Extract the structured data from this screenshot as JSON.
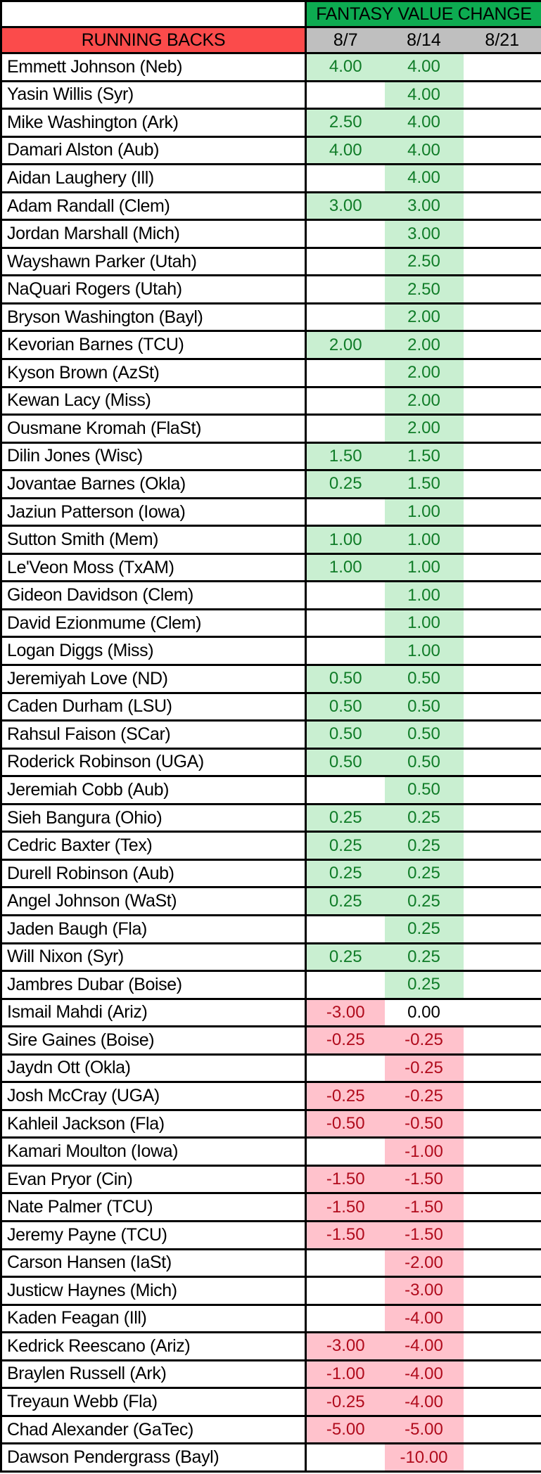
{
  "header": {
    "corner_label": "",
    "value_change_label": "FANTASY VALUE CHANGE",
    "group_label": "RUNNING BACKS",
    "date_columns": [
      "8/7",
      "8/14",
      "8/21"
    ]
  },
  "colors": {
    "header_green": "#0DAB51",
    "header_red": "#FB4B4B",
    "header_gray": "#BFBFBF",
    "positive_cell_bg": "#C9EFD1",
    "positive_text": "#107C28",
    "negative_cell_bg": "#FFC2CC",
    "negative_text": "#B00B1C",
    "zero_text": "#000000",
    "border": "#000000"
  },
  "rows": [
    {
      "player": "Emmett Johnson (Neb)",
      "values": [
        "4.00",
        "4.00",
        ""
      ]
    },
    {
      "player": "Yasin Willis (Syr)",
      "values": [
        "",
        "4.00",
        ""
      ]
    },
    {
      "player": "Mike Washington (Ark)",
      "values": [
        "2.50",
        "4.00",
        ""
      ]
    },
    {
      "player": "Damari Alston (Aub)",
      "values": [
        "4.00",
        "4.00",
        ""
      ]
    },
    {
      "player": "Aidan Laughery (Ill)",
      "values": [
        "",
        "4.00",
        ""
      ]
    },
    {
      "player": "Adam Randall (Clem)",
      "values": [
        "3.00",
        "3.00",
        ""
      ]
    },
    {
      "player": "Jordan Marshall (Mich)",
      "values": [
        "",
        "3.00",
        ""
      ]
    },
    {
      "player": "Wayshawn Parker (Utah)",
      "values": [
        "",
        "2.50",
        ""
      ]
    },
    {
      "player": "NaQuari Rogers (Utah)",
      "values": [
        "",
        "2.50",
        ""
      ]
    },
    {
      "player": "Bryson Washington (Bayl)",
      "values": [
        "",
        "2.00",
        ""
      ]
    },
    {
      "player": "Kevorian Barnes (TCU)",
      "values": [
        "2.00",
        "2.00",
        ""
      ]
    },
    {
      "player": "Kyson Brown (AzSt)",
      "values": [
        "",
        "2.00",
        ""
      ]
    },
    {
      "player": "Kewan Lacy (Miss)",
      "values": [
        "",
        "2.00",
        ""
      ]
    },
    {
      "player": "Ousmane Kromah (FlaSt)",
      "values": [
        "",
        "2.00",
        ""
      ]
    },
    {
      "player": "Dilin Jones (Wisc)",
      "values": [
        "1.50",
        "1.50",
        ""
      ]
    },
    {
      "player": "Jovantae Barnes (Okla)",
      "values": [
        "0.25",
        "1.50",
        ""
      ]
    },
    {
      "player": "Jaziun Patterson (Iowa)",
      "values": [
        "",
        "1.00",
        ""
      ]
    },
    {
      "player": "Sutton Smith (Mem)",
      "values": [
        "1.00",
        "1.00",
        ""
      ]
    },
    {
      "player": "Le'Veon Moss (TxAM)",
      "values": [
        "1.00",
        "1.00",
        ""
      ]
    },
    {
      "player": "Gideon Davidson (Clem)",
      "values": [
        "",
        "1.00",
        ""
      ]
    },
    {
      "player": "David Ezionmume (Clem)",
      "values": [
        "",
        "1.00",
        ""
      ]
    },
    {
      "player": "Logan Diggs (Miss)",
      "values": [
        "",
        "1.00",
        ""
      ]
    },
    {
      "player": "Jeremiyah Love (ND)",
      "values": [
        "0.50",
        "0.50",
        ""
      ]
    },
    {
      "player": "Caden Durham (LSU)",
      "values": [
        "0.50",
        "0.50",
        ""
      ]
    },
    {
      "player": "Rahsul Faison (SCar)",
      "values": [
        "0.50",
        "0.50",
        ""
      ]
    },
    {
      "player": "Roderick Robinson (UGA)",
      "values": [
        "0.50",
        "0.50",
        ""
      ]
    },
    {
      "player": "Jeremiah Cobb (Aub)",
      "values": [
        "",
        "0.50",
        ""
      ]
    },
    {
      "player": "Sieh Bangura (Ohio)",
      "values": [
        "0.25",
        "0.25",
        ""
      ]
    },
    {
      "player": "Cedric Baxter (Tex)",
      "values": [
        "0.25",
        "0.25",
        ""
      ]
    },
    {
      "player": "Durell Robinson (Aub)",
      "values": [
        "0.25",
        "0.25",
        ""
      ]
    },
    {
      "player": "Angel Johnson (WaSt)",
      "values": [
        "0.25",
        "0.25",
        ""
      ]
    },
    {
      "player": "Jaden Baugh (Fla)",
      "values": [
        "",
        "0.25",
        ""
      ]
    },
    {
      "player": "Will Nixon (Syr)",
      "values": [
        "0.25",
        "0.25",
        ""
      ]
    },
    {
      "player": "Jambres Dubar (Boise)",
      "values": [
        "",
        "0.25",
        ""
      ]
    },
    {
      "player": "Ismail Mahdi (Ariz)",
      "values": [
        "-3.00",
        "0.00",
        ""
      ]
    },
    {
      "player": "Sire Gaines (Boise)",
      "values": [
        "-0.25",
        "-0.25",
        ""
      ]
    },
    {
      "player": "Jaydn Ott (Okla)",
      "values": [
        "",
        "-0.25",
        ""
      ]
    },
    {
      "player": "Josh McCray (UGA)",
      "values": [
        "-0.25",
        "-0.25",
        ""
      ]
    },
    {
      "player": "Kahleil Jackson (Fla)",
      "values": [
        "-0.50",
        "-0.50",
        ""
      ]
    },
    {
      "player": "Kamari Moulton (Iowa)",
      "values": [
        "",
        "-1.00",
        ""
      ]
    },
    {
      "player": "Evan Pryor (Cin)",
      "values": [
        "-1.50",
        "-1.50",
        ""
      ]
    },
    {
      "player": "Nate Palmer (TCU)",
      "values": [
        "-1.50",
        "-1.50",
        ""
      ]
    },
    {
      "player": "Jeremy Payne (TCU)",
      "values": [
        "-1.50",
        "-1.50",
        ""
      ]
    },
    {
      "player": "Carson Hansen (IaSt)",
      "values": [
        "",
        "-2.00",
        ""
      ]
    },
    {
      "player": "Justicw Haynes (Mich)",
      "values": [
        "",
        "-3.00",
        ""
      ]
    },
    {
      "player": "Kaden Feagan (Ill)",
      "values": [
        "",
        "-4.00",
        ""
      ]
    },
    {
      "player": "Kedrick Reescano (Ariz)",
      "values": [
        "-3.00",
        "-4.00",
        ""
      ]
    },
    {
      "player": "Braylen Russell (Ark)",
      "values": [
        "-1.00",
        "-4.00",
        ""
      ]
    },
    {
      "player": "Treyaun Webb (Fla)",
      "values": [
        "-0.25",
        "-4.00",
        ""
      ]
    },
    {
      "player": "Chad Alexander (GaTec)",
      "values": [
        "-5.00",
        "-5.00",
        ""
      ]
    },
    {
      "player": "Dawson Pendergrass (Bayl)",
      "values": [
        "",
        "-10.00",
        ""
      ]
    }
  ]
}
